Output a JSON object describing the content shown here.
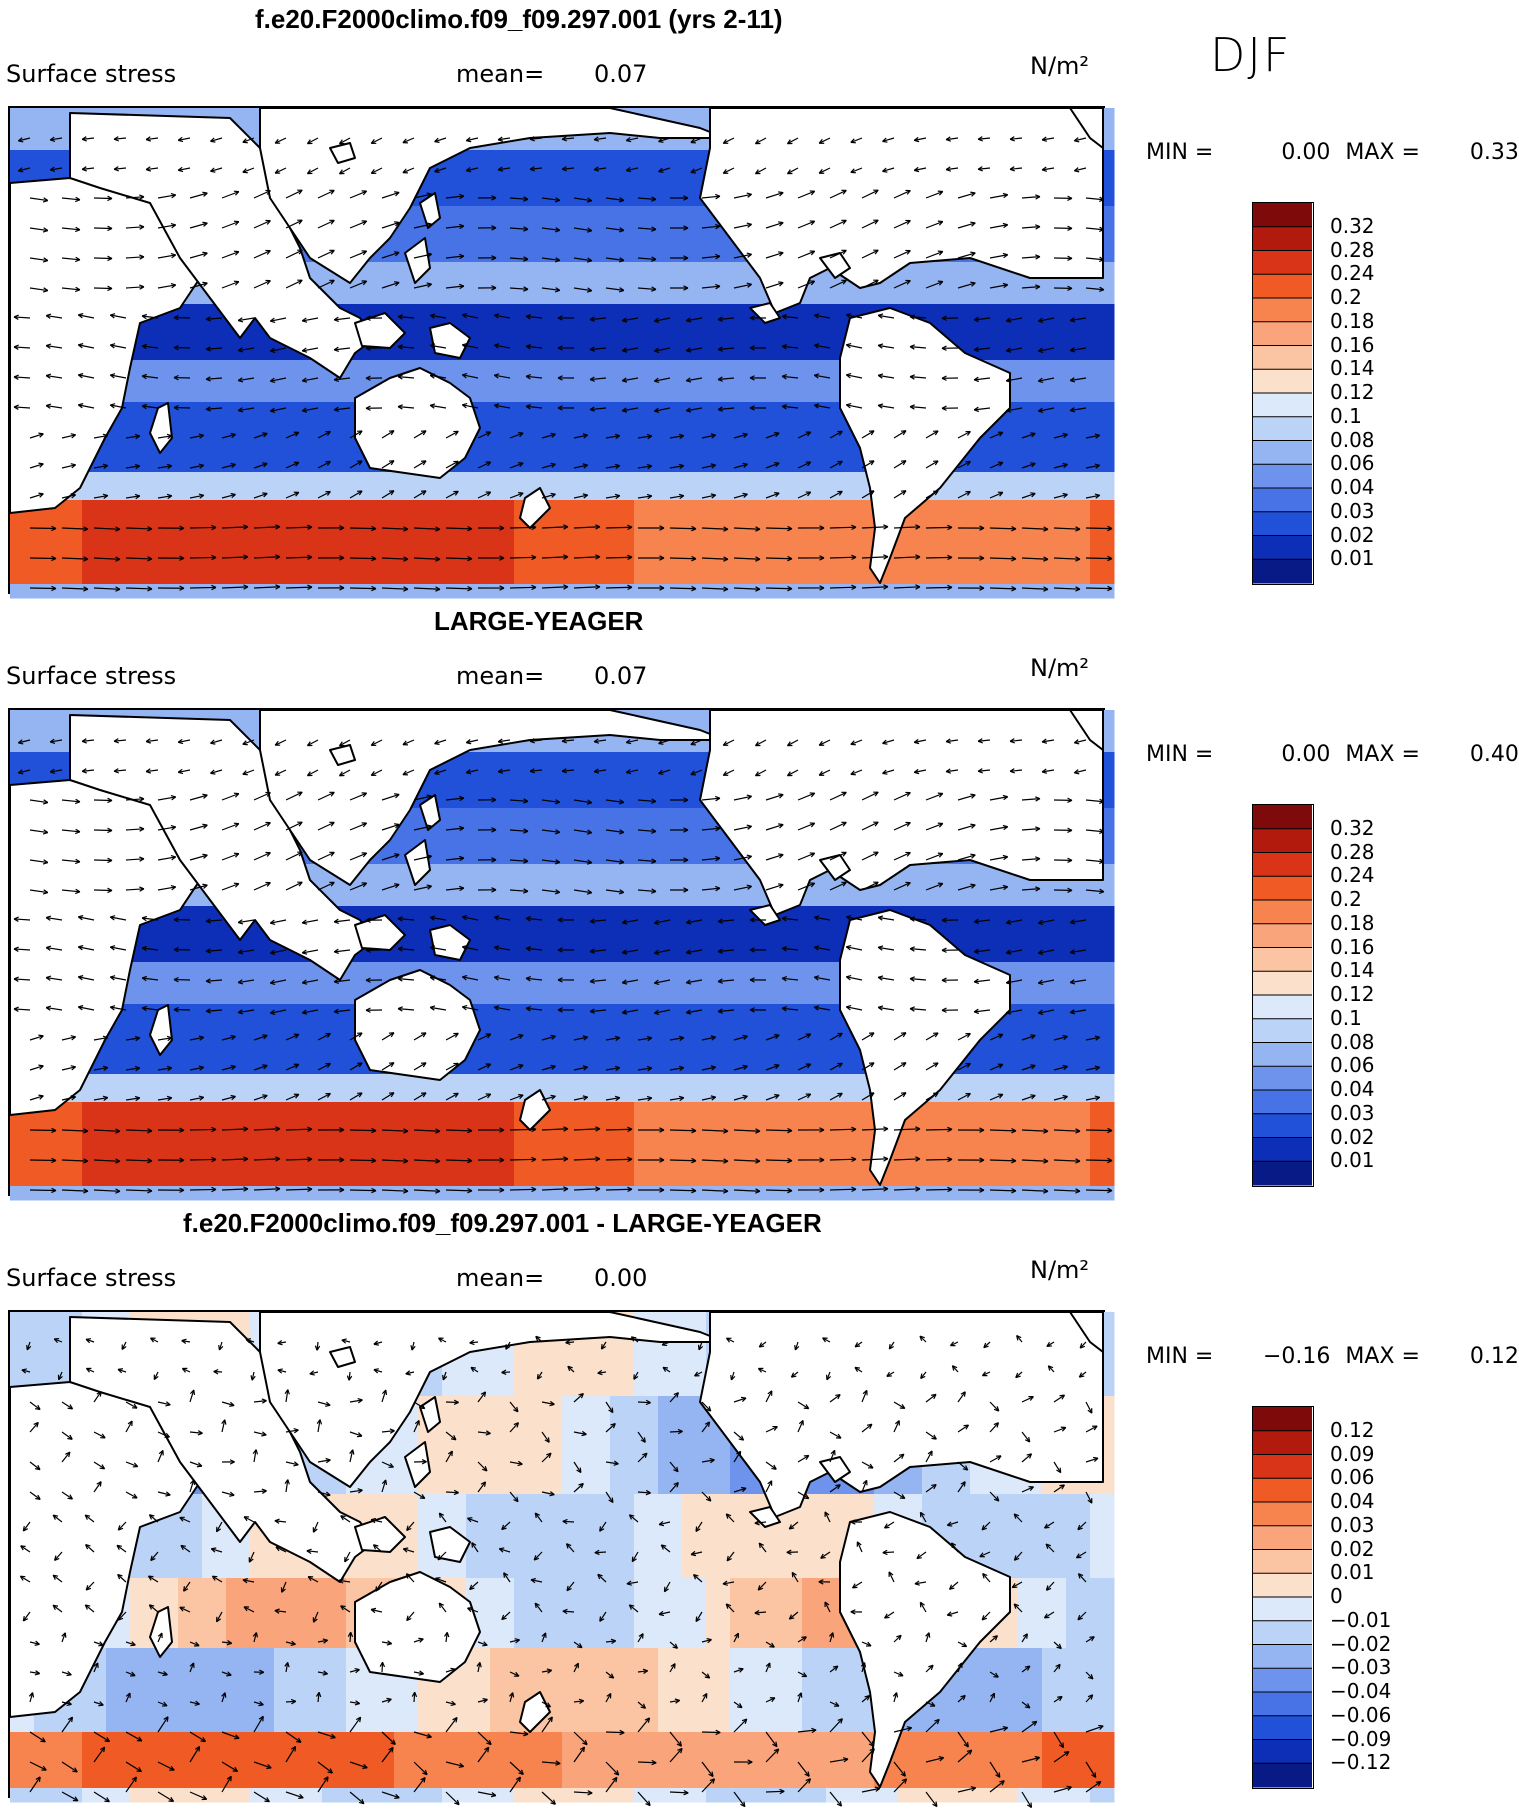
{
  "season": "DJF",
  "chart_data": [
    {
      "type": "heatmap",
      "title": "f.e20.F2000climo.f09_f09.297.001 (yrs 2-11)",
      "variable": "Surface stress",
      "mean_label": "mean=",
      "mean": "0.07",
      "units": "N/m²",
      "min_label": "MIN =",
      "min": "0.00",
      "max_label": "MAX =",
      "max": "0.33",
      "colorbar_ticks": [
        "0.32",
        "0.28",
        "0.24",
        "0.2",
        "0.18",
        "0.16",
        "0.14",
        "0.12",
        "0.1",
        "0.08",
        "0.06",
        "0.04",
        "0.03",
        "0.02",
        "0.01"
      ],
      "colors": [
        "#7e0a0a",
        "#b31a0e",
        "#d93417",
        "#f05a24",
        "#f7834f",
        "#f9a47a",
        "#fbc4a3",
        "#fbe0cc",
        "#dce9fb",
        "#bcd3f8",
        "#95b4f2",
        "#6d93ec",
        "#4873e6",
        "#2151d9",
        "#0d2fb8",
        "#071a86"
      ]
    },
    {
      "type": "heatmap",
      "title": "LARGE-YEAGER",
      "variable": "Surface stress",
      "mean_label": "mean=",
      "mean": "0.07",
      "units": "N/m²",
      "min_label": "MIN =",
      "min": "0.00",
      "max_label": "MAX =",
      "max": "0.40",
      "colorbar_ticks": [
        "0.32",
        "0.28",
        "0.24",
        "0.2",
        "0.18",
        "0.16",
        "0.14",
        "0.12",
        "0.1",
        "0.08",
        "0.06",
        "0.04",
        "0.03",
        "0.02",
        "0.01"
      ],
      "colors": [
        "#7e0a0a",
        "#b31a0e",
        "#d93417",
        "#f05a24",
        "#f7834f",
        "#f9a47a",
        "#fbc4a3",
        "#fbe0cc",
        "#dce9fb",
        "#bcd3f8",
        "#95b4f2",
        "#6d93ec",
        "#4873e6",
        "#2151d9",
        "#0d2fb8",
        "#071a86"
      ]
    },
    {
      "type": "heatmap",
      "title": "f.e20.F2000climo.f09_f09.297.001 - LARGE-YEAGER",
      "variable": "Surface stress",
      "mean_label": "mean=",
      "mean": "0.00",
      "units": "N/m²",
      "min_label": "MIN =",
      "min": "−0.16",
      "max_label": "MAX =",
      "max": "0.12",
      "colorbar_ticks": [
        "0.12",
        "0.09",
        "0.06",
        "0.04",
        "0.03",
        "0.02",
        "0.01",
        "0",
        "−0.01",
        "−0.02",
        "−0.03",
        "−0.04",
        "−0.06",
        "−0.09",
        "−0.12"
      ],
      "colors": [
        "#7e0a0a",
        "#b31a0e",
        "#d93417",
        "#f05a24",
        "#f7834f",
        "#f9a47a",
        "#fbc4a3",
        "#fbe0cc",
        "#dce9fb",
        "#bcd3f8",
        "#95b4f2",
        "#6d93ec",
        "#4873e6",
        "#2151d9",
        "#0d2fb8",
        "#071a86"
      ]
    }
  ]
}
